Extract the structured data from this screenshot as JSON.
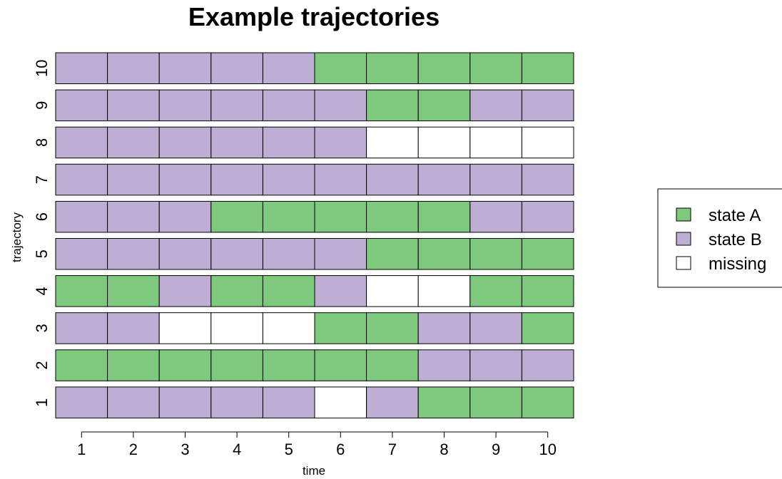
{
  "chart_data": {
    "type": "heatmap",
    "title": "Example trajectories",
    "xlabel": "time",
    "ylabel": "trajectory",
    "x": [
      1,
      2,
      3,
      4,
      5,
      6,
      7,
      8,
      9,
      10
    ],
    "y": [
      1,
      2,
      3,
      4,
      5,
      6,
      7,
      8,
      9,
      10
    ],
    "xlim": [
      0.5,
      10.5
    ],
    "grid": false,
    "legend_position": "right",
    "states": [
      {
        "code": "A",
        "label": "state A",
        "color": "#7fc97f"
      },
      {
        "code": "B",
        "label": "state B",
        "color": "#beaed4"
      },
      {
        "code": "M",
        "label": "missing",
        "color": "#ffffff"
      }
    ],
    "trajectories": [
      {
        "id": "1",
        "states": [
          "B",
          "B",
          "B",
          "B",
          "B",
          "M",
          "B",
          "A",
          "A",
          "A"
        ]
      },
      {
        "id": "2",
        "states": [
          "A",
          "A",
          "A",
          "A",
          "A",
          "A",
          "A",
          "B",
          "B",
          "B"
        ]
      },
      {
        "id": "3",
        "states": [
          "B",
          "B",
          "M",
          "M",
          "M",
          "A",
          "A",
          "B",
          "B",
          "A"
        ]
      },
      {
        "id": "4",
        "states": [
          "A",
          "A",
          "B",
          "A",
          "A",
          "B",
          "M",
          "M",
          "A",
          "A"
        ]
      },
      {
        "id": "5",
        "states": [
          "B",
          "B",
          "B",
          "B",
          "B",
          "B",
          "A",
          "A",
          "A",
          "A"
        ]
      },
      {
        "id": "6",
        "states": [
          "B",
          "B",
          "B",
          "A",
          "A",
          "A",
          "A",
          "A",
          "B",
          "B"
        ]
      },
      {
        "id": "7",
        "states": [
          "B",
          "B",
          "B",
          "B",
          "B",
          "B",
          "B",
          "B",
          "B",
          "B"
        ]
      },
      {
        "id": "8",
        "states": [
          "B",
          "B",
          "B",
          "B",
          "B",
          "B",
          "M",
          "M",
          "M",
          "M"
        ]
      },
      {
        "id": "9",
        "states": [
          "B",
          "B",
          "B",
          "B",
          "B",
          "B",
          "A",
          "A",
          "B",
          "B"
        ]
      },
      {
        "id": "10",
        "states": [
          "B",
          "B",
          "B",
          "B",
          "B",
          "A",
          "A",
          "A",
          "A",
          "A"
        ]
      }
    ]
  }
}
